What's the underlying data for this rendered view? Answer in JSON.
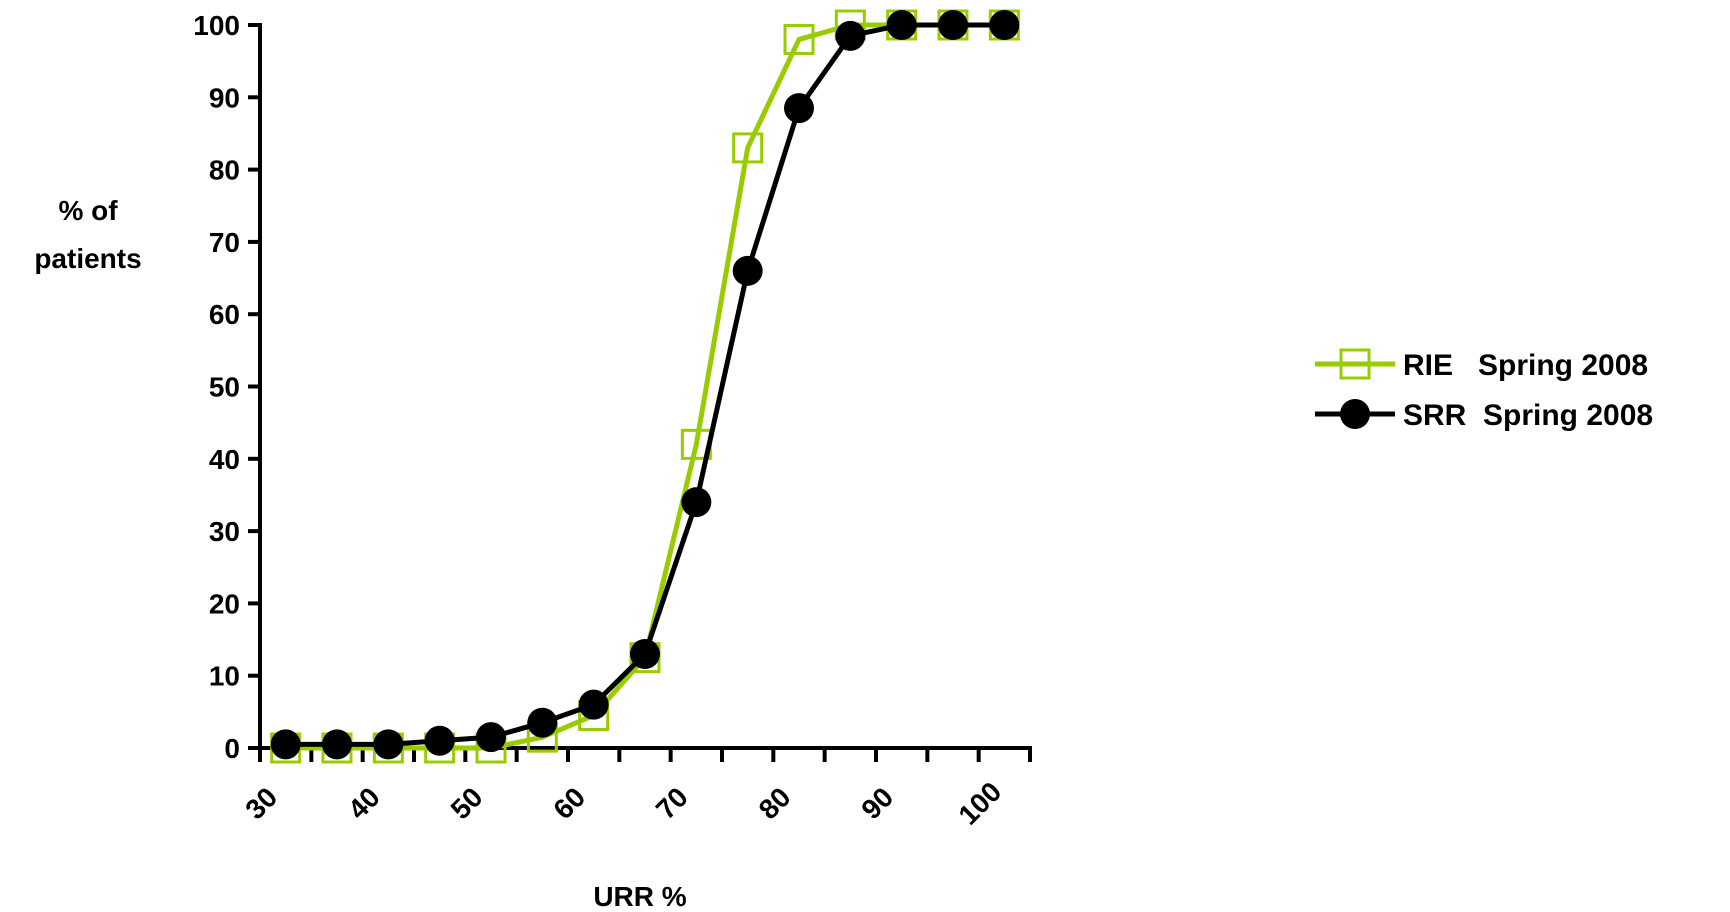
{
  "chart_data": {
    "type": "line",
    "xlabel": "URR %",
    "ylabel_lines": [
      "% of",
      "patients"
    ],
    "xlim": [
      30,
      105
    ],
    "ylim": [
      0,
      100
    ],
    "x_ticks": [
      30,
      40,
      50,
      60,
      70,
      80,
      90,
      100
    ],
    "y_ticks": [
      0,
      10,
      20,
      30,
      40,
      50,
      60,
      70,
      80,
      90,
      100
    ],
    "grid": false,
    "legend_position": "right",
    "x": [
      32.5,
      37.5,
      42.5,
      47.5,
      52.5,
      57.5,
      62.5,
      67.5,
      72.5,
      77.5,
      82.5,
      87.5,
      92.5,
      97.5,
      102.5
    ],
    "series": [
      {
        "name": "RIE   Spring 2008",
        "color": "#99cc00",
        "marker": "open-square",
        "values": [
          0,
          0,
          0,
          0,
          0,
          1.5,
          4.5,
          12.5,
          42,
          83,
          98,
          100,
          100,
          100,
          100
        ]
      },
      {
        "name": "SRR  Spring 2008",
        "color": "#000000",
        "marker": "filled-circle",
        "values": [
          0.5,
          0.5,
          0.5,
          1,
          1.5,
          3.5,
          6,
          13,
          34,
          66,
          88.5,
          98.5,
          100,
          100,
          100
        ]
      }
    ]
  }
}
